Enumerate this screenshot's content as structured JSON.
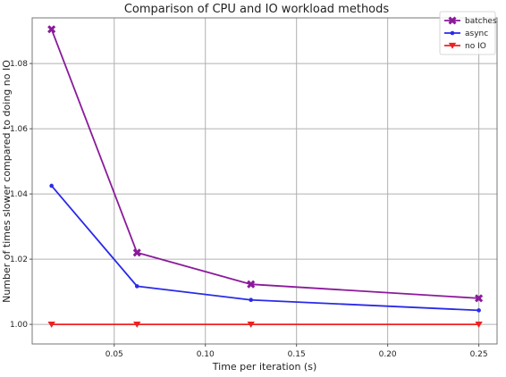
{
  "chart_data": {
    "type": "line",
    "title": "Comparison of CPU and IO workload methods",
    "xlabel": "Time per iteration (s)",
    "ylabel": "Number of times slower compared to doing no IO",
    "xlim": [
      0.005,
      0.26
    ],
    "ylim": [
      0.994,
      1.094
    ],
    "xticks": [
      0.05,
      0.1,
      0.15,
      0.2,
      0.25
    ],
    "xtick_labels": [
      "0.05",
      "0.10",
      "0.15",
      "0.20",
      "0.25"
    ],
    "yticks": [
      1.0,
      1.02,
      1.04,
      1.06,
      1.08
    ],
    "ytick_labels": [
      "1.00",
      "1.02",
      "1.04",
      "1.06",
      "1.08"
    ],
    "grid": true,
    "legend_position": "top-right",
    "x": [
      0.015625,
      0.0625,
      0.125,
      0.25
    ],
    "series": [
      {
        "name": "batches",
        "color": "#8b1a9b",
        "marker": "X",
        "values": [
          1.0905,
          1.022,
          1.0123,
          1.008
        ]
      },
      {
        "name": "async",
        "color": "#2a2ae8",
        "marker": "dot",
        "values": [
          1.0425,
          1.0117,
          1.0075,
          1.0043
        ]
      },
      {
        "name": "no IO",
        "color": "#ee2222",
        "marker": "triangle-down",
        "values": [
          1.0,
          1.0,
          1.0,
          1.0
        ]
      }
    ]
  }
}
